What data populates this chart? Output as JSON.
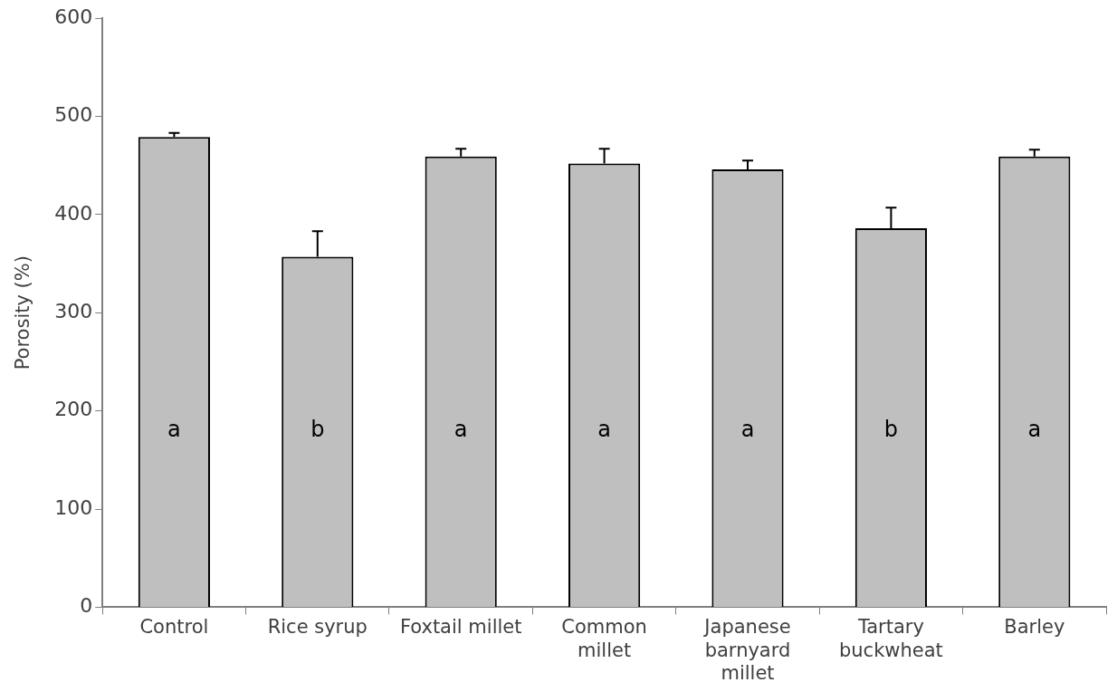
{
  "chart_data": {
    "type": "bar",
    "ylabel": "Porosity (%)",
    "categories": [
      "Control",
      "Rice syrup",
      "Foxtail millet",
      "Common\nmillet",
      "Japanese\nbarnyard\nmillet",
      "Tartary\nbuckwheat",
      "Barley"
    ],
    "values": [
      479,
      357,
      459,
      452,
      446,
      386,
      459
    ],
    "errors": [
      [
        479,
        483
      ],
      [
        357,
        383
      ],
      [
        459,
        467
      ],
      [
        452,
        467
      ],
      [
        446,
        455
      ],
      [
        386,
        407
      ],
      [
        459,
        466
      ]
    ],
    "color": "#bfbfbf",
    "ylim": [
      0,
      600
    ],
    "yticks": [
      0,
      100,
      200,
      300,
      400,
      500,
      600
    ],
    "grid": false,
    "legend": false,
    "annotations": [
      "a",
      "b",
      "a",
      "a",
      "a",
      "b",
      "a"
    ]
  }
}
